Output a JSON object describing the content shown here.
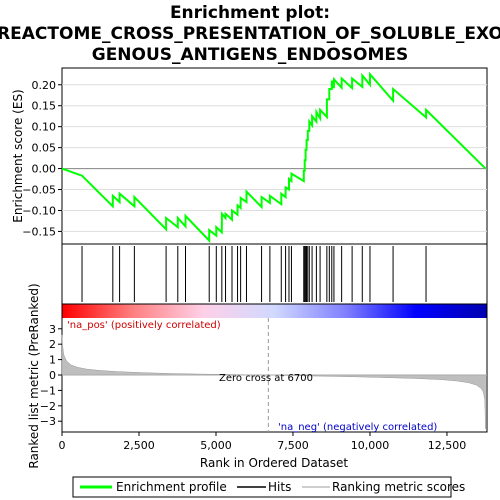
{
  "chart_data": [
    {
      "type": "line",
      "title": "Enrichment plot: REACTOME_CROSS_PRESENTATION_OF_SOLUBLE_EXOGENOUS_ANTIGENS_ENDOSOMES",
      "title_lines": [
        "Enrichment plot:",
        "REACTOME_CROSS_PRESENTATION_OF_SOLUBLE_EXO",
        "GENOUS_ANTIGENS_ENDOSOMES"
      ],
      "ylabel": "Enrichment score (ES)",
      "xlim": [
        0,
        13800
      ],
      "ylim": [
        -0.18,
        0.24
      ],
      "yticks": [
        -0.15,
        -0.1,
        -0.05,
        0.0,
        0.05,
        0.1,
        0.15,
        0.2
      ],
      "ytick_labels": [
        "−0.15",
        "−0.10",
        "−0.05",
        "0.00",
        "0.05",
        "0.10",
        "0.15",
        "0.20"
      ],
      "grid": true,
      "line_color": "#00ff00",
      "series": [
        {
          "name": "Enrichment profile",
          "x": [
            0,
            650,
            651,
            1650,
            1651,
            1870,
            1871,
            2350,
            2351,
            3380,
            3381,
            3760,
            3761,
            4010,
            4011,
            4780,
            4781,
            5010,
            5011,
            5190,
            5191,
            5310,
            5311,
            5520,
            5521,
            5700,
            5701,
            5800,
            5801,
            5990,
            5991,
            6480,
            6481,
            6750,
            6751,
            7120,
            7121,
            7260,
            7261,
            7370,
            7371,
            7450,
            7451,
            7850,
            7851,
            7880,
            7881,
            7910,
            7911,
            7940,
            7941,
            7980,
            7981,
            8030,
            8031,
            8120,
            8121,
            8260,
            8261,
            8380,
            8381,
            8600,
            8601,
            8680,
            8681,
            8760,
            8761,
            8830,
            8831,
            9080,
            9081,
            9420,
            9421,
            9750,
            9751,
            10000,
            10001,
            10750,
            10751,
            11820,
            11821,
            13750
          ],
          "y": [
            0.0,
            -0.017,
            -0.017,
            -0.09,
            -0.065,
            -0.08,
            -0.06,
            -0.09,
            -0.068,
            -0.145,
            -0.118,
            -0.14,
            -0.118,
            -0.138,
            -0.113,
            -0.172,
            -0.147,
            -0.16,
            -0.14,
            -0.152,
            -0.108,
            -0.118,
            -0.108,
            -0.122,
            -0.1,
            -0.11,
            -0.088,
            -0.094,
            -0.07,
            -0.08,
            -0.055,
            -0.092,
            -0.068,
            -0.082,
            -0.065,
            -0.085,
            -0.06,
            -0.068,
            -0.045,
            -0.05,
            -0.025,
            -0.03,
            -0.012,
            -0.03,
            -0.005,
            -0.005,
            0.02,
            0.02,
            0.045,
            0.045,
            0.068,
            0.068,
            0.09,
            0.09,
            0.112,
            0.103,
            0.125,
            0.112,
            0.135,
            0.12,
            0.14,
            0.123,
            0.165,
            0.165,
            0.19,
            0.19,
            0.21,
            0.192,
            0.213,
            0.193,
            0.215,
            0.192,
            0.215,
            0.195,
            0.222,
            0.2,
            0.225,
            0.162,
            0.19,
            0.122,
            0.14,
            0.0
          ]
        }
      ]
    },
    {
      "type": "scatter",
      "name": "hits",
      "xlim": [
        0,
        13800
      ],
      "line_color": "#000000",
      "hits": [
        650,
        1650,
        1870,
        2350,
        3380,
        3760,
        4010,
        4780,
        5010,
        5190,
        5310,
        5520,
        5700,
        5800,
        5990,
        6480,
        6750,
        7120,
        7260,
        7370,
        7450,
        7850,
        7880,
        7910,
        7940,
        7980,
        8030,
        8120,
        8260,
        8380,
        8600,
        8680,
        8760,
        8830,
        9080,
        9420,
        9750,
        10000,
        10750,
        11820
      ]
    },
    {
      "type": "area",
      "xlabel": "Rank in Ordered Dataset",
      "ylabel": "Ranked list metric (PreRanked)",
      "xlim": [
        0,
        13800
      ],
      "ylim": [
        -3.7,
        3.7
      ],
      "yticks": [
        -3,
        -2,
        -1,
        0,
        1,
        2,
        3
      ],
      "ytick_labels": [
        "−3",
        "−2",
        "−1",
        "0",
        "1",
        "2",
        "3"
      ],
      "xticks": [
        0,
        2500,
        5000,
        7500,
        10000,
        12500
      ],
      "xtick_labels": [
        "0",
        "2,500",
        "5,000",
        "7,500",
        "10,000",
        "12,500"
      ],
      "zero_cross": 6700,
      "fill_color": "#bebebe",
      "annotations": {
        "pos": "'na_pos' (positively correlated)",
        "neg": "'na_neg' (negatively correlated)",
        "zero": "Zero cross at 6700"
      },
      "x": [
        0,
        20,
        60,
        150,
        300,
        500,
        800,
        1200,
        1800,
        2500,
        3500,
        4500,
        5500,
        6200,
        6700,
        7500,
        8500,
        9500,
        10500,
        11500,
        12300,
        12800,
        13200,
        13450,
        13600,
        13680,
        13730,
        13750
      ],
      "values": [
        2.6,
        1.9,
        1.3,
        0.9,
        0.65,
        0.5,
        0.38,
        0.3,
        0.22,
        0.16,
        0.1,
        0.06,
        0.03,
        0.01,
        0.0,
        -0.04,
        -0.08,
        -0.12,
        -0.17,
        -0.23,
        -0.3,
        -0.38,
        -0.5,
        -0.65,
        -0.85,
        -1.1,
        -1.6,
        -3.5
      ]
    }
  ],
  "gradient_colors": [
    "#ff0000",
    "#ff8080",
    "#ffd0e8",
    "#d0d8ff",
    "#8080ff",
    "#0000ff",
    "#0000b0"
  ],
  "legend": {
    "items": [
      {
        "label": "Enrichment profile",
        "color": "#00ff00"
      },
      {
        "label": "Hits",
        "color": "#000000"
      },
      {
        "label": "Ranking metric scores",
        "color": "#bebebe"
      }
    ]
  }
}
